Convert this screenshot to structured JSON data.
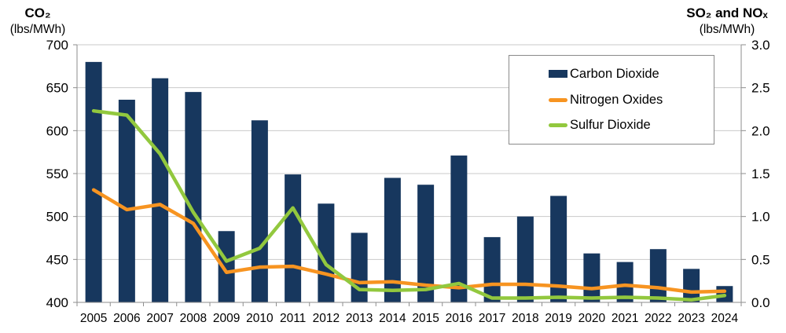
{
  "chart_data": {
    "type": "combo bar+line, dual y-axis",
    "title": "",
    "categories": [
      "2005",
      "2006",
      "2007",
      "2008",
      "2009",
      "2010",
      "2011",
      "2012",
      "2013",
      "2014",
      "2015",
      "2016",
      "2017",
      "2018",
      "2019",
      "2020",
      "2021",
      "2022",
      "2023",
      "2024"
    ],
    "series": [
      {
        "name": "Carbon Dioxide",
        "type": "bar",
        "axis": "left",
        "color": "#17375E",
        "values": [
          680,
          636,
          661,
          645,
          483,
          612,
          549,
          515,
          481,
          545,
          537,
          571,
          476,
          500,
          524,
          457,
          447,
          462,
          439,
          419
        ]
      },
      {
        "name": "Nitrogen Oxides",
        "type": "line",
        "axis": "right",
        "color": "#F79421",
        "values": [
          1.31,
          1.08,
          1.14,
          0.92,
          0.35,
          0.41,
          0.42,
          0.33,
          0.23,
          0.24,
          0.2,
          0.17,
          0.21,
          0.21,
          0.19,
          0.16,
          0.2,
          0.17,
          0.12,
          0.13
        ]
      },
      {
        "name": "Sulfur Dioxide",
        "type": "line",
        "axis": "right",
        "color": "#92C83E",
        "values": [
          2.23,
          2.18,
          1.73,
          1.05,
          0.48,
          0.63,
          1.1,
          0.44,
          0.15,
          0.14,
          0.15,
          0.22,
          0.05,
          0.05,
          0.06,
          0.05,
          0.06,
          0.05,
          0.03,
          0.08
        ]
      }
    ],
    "left_axis": {
      "title": "CO₂",
      "units": "(lbs/MWh)",
      "min": 400,
      "max": 700,
      "tick_step": 50,
      "tick_values": [
        700,
        650,
        600,
        550,
        500,
        450,
        400
      ],
      "tick_labels": [
        "700",
        "650",
        "600",
        "550",
        "500",
        "450",
        "400"
      ]
    },
    "right_axis": {
      "title": "SO₂ and NOₓ",
      "units": "(lbs/MWh)",
      "min": 0,
      "max": 3,
      "tick_step": 0.5,
      "tick_values": [
        3.0,
        2.5,
        2.0,
        1.5,
        1.0,
        0.5,
        0.0
      ],
      "tick_labels": [
        "3.0",
        "2.5",
        "2.0",
        "1.5",
        "1.0",
        "0.5",
        "0.0"
      ]
    },
    "grid": true,
    "legend": {
      "position": "top-right-inside",
      "items": [
        "Carbon Dioxide",
        "Nitrogen Oxides",
        "Sulfur Dioxide"
      ]
    },
    "colors": {
      "gridline": "#C9C9C9",
      "axis": "#8E8E8E",
      "text": "#000000",
      "background": "#FFFFFF"
    }
  }
}
